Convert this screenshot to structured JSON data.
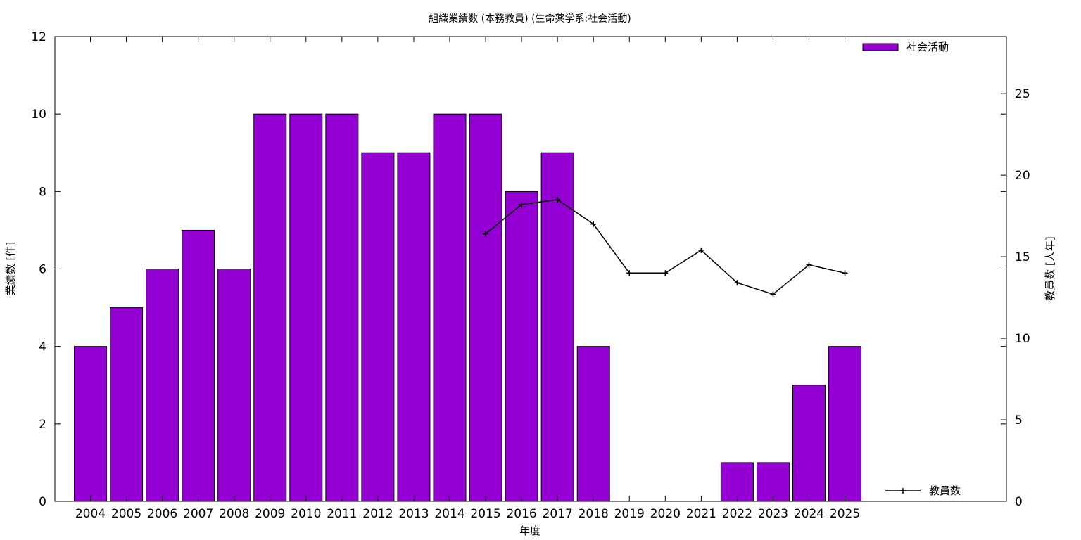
{
  "chart_data": {
    "type": "bar",
    "title": "組織業績数 (本務教員) (生命薬学系:社会活動)",
    "xlabel": "年度",
    "ylabel": "業績数 [件]",
    "y2label": "教員数 [人年]",
    "categories": [
      "2004",
      "2005",
      "2006",
      "2007",
      "2008",
      "2009",
      "2010",
      "2011",
      "2012",
      "2013",
      "2014",
      "2015",
      "2016",
      "2017",
      "2018",
      "2019",
      "2020",
      "2021",
      "2022",
      "2023",
      "2024",
      "2025"
    ],
    "ylim": [
      0,
      12
    ],
    "y2lim": [
      0,
      28.5
    ],
    "yticks": [
      0,
      2,
      4,
      6,
      8,
      10,
      12
    ],
    "y2ticks": [
      0,
      5,
      10,
      15,
      20,
      25
    ],
    "grid": false,
    "bar_color": "#9400d3",
    "line_color": "#000000",
    "series": [
      {
        "name": "社会活動",
        "type": "bar",
        "axis": "left",
        "values": [
          4,
          5,
          6,
          7,
          6,
          10,
          10,
          10,
          9,
          9,
          10,
          10,
          8,
          9,
          4,
          0,
          0,
          0,
          1,
          1,
          3,
          4
        ]
      },
      {
        "name": "教員数",
        "type": "line",
        "axis": "right",
        "values": [
          null,
          null,
          null,
          null,
          null,
          null,
          null,
          null,
          null,
          null,
          null,
          16.4,
          18.2,
          18.5,
          17.0,
          14.0,
          14.0,
          15.4,
          13.4,
          12.7,
          14.5,
          14.0
        ]
      }
    ],
    "legend": {
      "placement": "top-right (bar), bottom-right (line)"
    }
  }
}
